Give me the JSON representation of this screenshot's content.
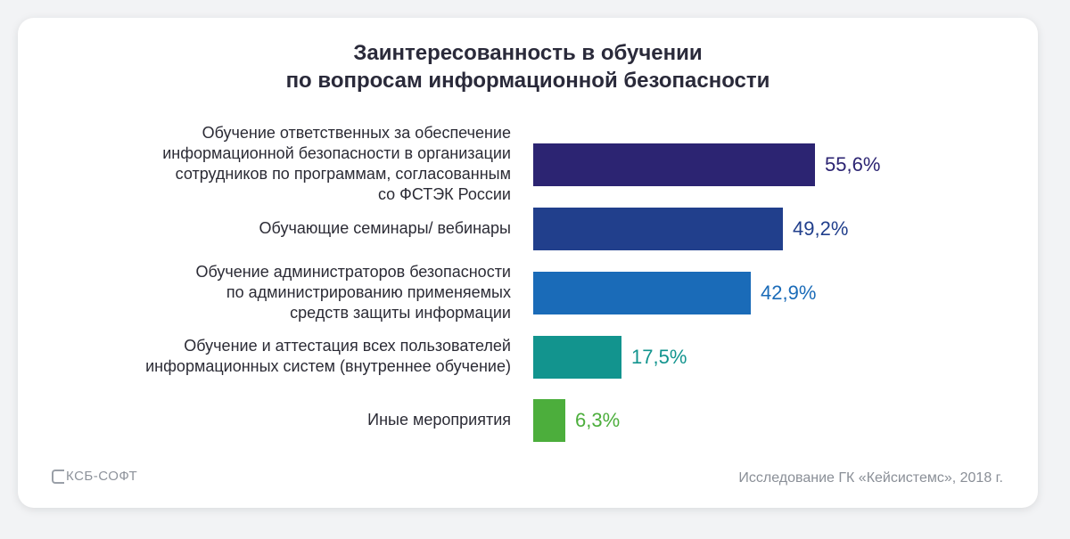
{
  "chart_data": {
    "type": "bar",
    "orientation": "horizontal",
    "title_lines": [
      "Заинтересованность в обучении",
      "по вопросам информационной безопасности"
    ],
    "categories": [
      [
        "Обучение ответственных за обеспечение",
        "информационной безопасности в организации",
        "сотрудников по программам, согласованным",
        "со ФСТЭК России"
      ],
      [
        "Обучающие семинары/ вебинары"
      ],
      [
        "Обучение администраторов безопасности",
        "по администрированию применяемых",
        "средств защиты информации"
      ],
      [
        "Обучение и аттестация всех пользователей",
        "информационных систем (внутреннее обучение)"
      ],
      [
        "Иные мероприятия"
      ]
    ],
    "values": [
      55.6,
      49.2,
      42.9,
      17.5,
      6.3
    ],
    "value_labels": [
      "55,6%",
      "49,2%",
      "42,9%",
      "17,5%",
      "6,3%"
    ],
    "bar_colors": [
      "#2c2472",
      "#213f8c",
      "#1a6bb8",
      "#12948e",
      "#4cae3c"
    ],
    "label_colors": [
      "#2c2472",
      "#213f8c",
      "#1a6bb8",
      "#12948e",
      "#4cae3c"
    ],
    "xlim": [
      0,
      100
    ]
  },
  "footer": {
    "logo_text": "КСБ-СОФТ",
    "source": "Исследование ГК «Кейсистемс», 2018 г."
  }
}
